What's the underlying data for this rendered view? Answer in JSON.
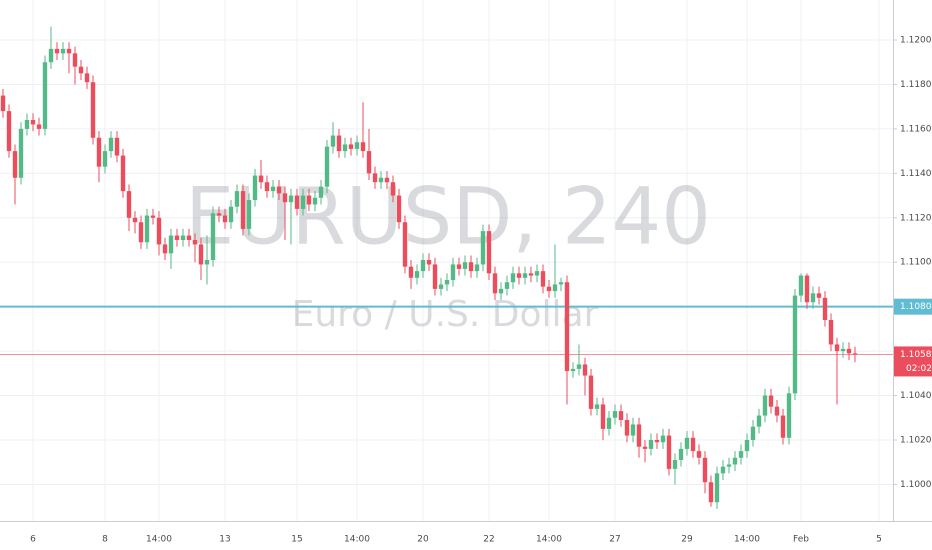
{
  "chart_data": {
    "type": "candlestick",
    "watermark": "EURUSD, 240",
    "subtitle": "Euro / U.S. Dollar",
    "categories": [
      null,
      null,
      null,
      null,
      null,
      "6",
      null,
      null,
      null,
      null,
      null,
      null,
      null,
      null,
      null,
      null,
      null,
      "8",
      null,
      null,
      null,
      null,
      null,
      null,
      null,
      null,
      "14:00",
      null,
      null,
      null,
      null,
      null,
      null,
      null,
      null,
      null,
      null,
      "13",
      null,
      null,
      null,
      null,
      null,
      null,
      null,
      null,
      null,
      null,
      null,
      "15",
      null,
      null,
      null,
      null,
      null,
      null,
      null,
      null,
      null,
      "14:00",
      null,
      null,
      null,
      null,
      null,
      null,
      null,
      null,
      null,
      null,
      "20",
      null,
      null,
      null,
      null,
      null,
      null,
      null,
      null,
      null,
      null,
      "22",
      null,
      null,
      null,
      null,
      null,
      null,
      null,
      null,
      null,
      "14:00",
      null,
      null,
      null,
      null,
      null,
      null,
      null,
      null,
      null,
      null,
      "27",
      null,
      null,
      null,
      null,
      null,
      null,
      null,
      null,
      null,
      null,
      null,
      "29",
      null,
      null,
      null,
      null,
      null,
      null,
      null,
      null,
      null,
      "14:00",
      null,
      null,
      null,
      null,
      null,
      null,
      null,
      null,
      "Feb",
      null,
      null,
      null,
      null,
      null,
      null,
      null,
      null,
      null,
      null,
      null,
      null,
      "5"
    ],
    "open": [
      1.1175,
      1.1168,
      1.115,
      1.1138,
      1.116,
      1.1164,
      1.1162,
      1.116,
      1.119,
      1.1196,
      1.1194,
      1.1196,
      1.1194,
      1.1188,
      1.1185,
      1.1181,
      1.1156,
      1.1143,
      1.115,
      1.1156,
      1.1148,
      1.1132,
      1.112,
      1.1118,
      1.1109,
      1.1121,
      1.112,
      1.1108,
      1.1104,
      1.1112,
      1.111,
      1.1112,
      1.111,
      1.1108,
      1.1099,
      1.1101,
      1.1122,
      1.1121,
      1.1118,
      1.1125,
      1.1132,
      1.1115,
      1.1128,
      1.1139,
      1.1136,
      1.1132,
      1.1134,
      1.1131,
      1.1127,
      1.113,
      1.1124,
      1.113,
      1.1126,
      1.1129,
      1.1134,
      1.1152,
      1.1157,
      1.115,
      1.1153,
      1.1151,
      1.1154,
      1.115,
      1.114,
      1.1136,
      1.1138,
      1.1136,
      1.113,
      1.1118,
      1.1098,
      1.1093,
      1.1096,
      1.1101,
      1.1099,
      1.1088,
      1.109,
      1.1092,
      1.1099,
      1.1097,
      1.11,
      1.1096,
      1.1099,
      1.1114,
      1.1095,
      1.1086,
      1.1088,
      1.1091,
      1.1095,
      1.1093,
      1.1095,
      1.1094,
      1.1096,
      1.1089,
      1.1087,
      1.109,
      1.1091,
      1.1051,
      1.1052,
      1.1054,
      1.1049,
      1.1034,
      1.1036,
      1.1025,
      1.103,
      1.1033,
      1.1029,
      1.1022,
      1.1027,
      1.1017,
      1.1016,
      1.102,
      1.1019,
      1.1022,
      1.1007,
      1.1011,
      1.1016,
      1.1021,
      1.1015,
      1.1012,
      1.1001,
      1.0992,
      1.1005,
      1.1008,
      1.1009,
      1.1012,
      1.1015,
      1.102,
      1.1026,
      1.1031,
      1.104,
      1.1035,
      1.1031,
      1.1021,
      1.1041,
      1.1085,
      1.1094,
      1.1082,
      1.1086,
      1.1084,
      1.1074,
      1.1063,
      1.106,
      1.1061,
      1.1059,
      null,
      null,
      null,
      null
    ],
    "high": [
      1.1178,
      1.1171,
      1.1153,
      1.1163,
      1.1167,
      1.1167,
      1.1165,
      1.1193,
      1.1206,
      1.1199,
      1.1199,
      1.1199,
      1.1197,
      1.1191,
      1.1188,
      1.1184,
      1.1159,
      1.1153,
      1.1159,
      1.1159,
      1.1151,
      1.1135,
      1.1123,
      1.1121,
      1.1124,
      1.1124,
      1.1123,
      1.1111,
      1.1115,
      1.1115,
      1.1115,
      1.1115,
      1.1113,
      1.1111,
      1.1112,
      1.1125,
      1.1125,
      1.1124,
      1.1128,
      1.1135,
      1.1135,
      1.1131,
      1.1142,
      1.1146,
      1.1139,
      1.1137,
      1.1137,
      1.1134,
      1.1133,
      1.1133,
      1.1133,
      1.1133,
      1.1132,
      1.1137,
      1.1155,
      1.1163,
      1.116,
      1.1156,
      1.1156,
      1.1157,
      1.1172,
      1.116,
      1.1143,
      1.1141,
      1.1141,
      1.1139,
      1.1133,
      1.1121,
      1.1101,
      1.1099,
      1.1104,
      1.1104,
      1.1102,
      1.1093,
      1.1095,
      1.1102,
      1.1102,
      1.1103,
      1.1103,
      1.1102,
      1.1117,
      1.1117,
      1.1098,
      1.1091,
      1.1094,
      1.1098,
      1.1098,
      1.1098,
      1.1098,
      1.1099,
      1.1099,
      1.1092,
      1.1108,
      1.1093,
      1.1094,
      1.1055,
      1.1063,
      1.1057,
      1.1052,
      1.1039,
      1.1039,
      1.1033,
      1.1036,
      1.1036,
      1.1032,
      1.103,
      1.103,
      1.102,
      1.1023,
      1.1023,
      1.1025,
      1.1025,
      1.1014,
      1.1019,
      1.1024,
      1.1024,
      1.1018,
      1.1015,
      1.1004,
      1.1008,
      1.1011,
      1.1012,
      1.1015,
      1.1018,
      1.1023,
      1.1029,
      1.1034,
      1.1043,
      1.1043,
      1.1038,
      1.1034,
      1.1044,
      1.1088,
      1.1095,
      1.1095,
      1.1089,
      1.1089,
      1.1087,
      1.1077,
      1.1066,
      1.1064,
      1.1064,
      1.1062,
      null,
      null,
      null,
      null
    ],
    "low": [
      1.1165,
      1.1147,
      1.1126,
      1.1135,
      1.1157,
      1.1159,
      1.1157,
      1.1157,
      1.1187,
      1.1191,
      1.1191,
      1.1185,
      1.118,
      1.1182,
      1.1178,
      1.1153,
      1.1136,
      1.114,
      1.1147,
      1.1145,
      1.1129,
      1.1114,
      1.1113,
      1.1106,
      1.1106,
      1.1117,
      1.1103,
      1.1101,
      1.1097,
      1.1107,
      1.1107,
      1.1107,
      1.11,
      1.1092,
      1.109,
      1.1098,
      1.1118,
      1.1115,
      1.1115,
      1.1122,
      1.1112,
      1.1112,
      1.1125,
      1.1133,
      1.1129,
      1.1129,
      1.1128,
      1.111,
      1.1108,
      1.1121,
      1.1121,
      1.1123,
      1.1123,
      1.1126,
      1.1131,
      1.1149,
      1.1147,
      1.1147,
      1.1148,
      1.1148,
      1.1147,
      1.1137,
      1.1133,
      1.1133,
      1.1133,
      1.1127,
      1.1115,
      1.1095,
      1.1088,
      1.109,
      1.1093,
      1.1096,
      1.1085,
      1.1085,
      1.1087,
      1.1089,
      1.1094,
      1.1094,
      1.1093,
      1.1093,
      1.1096,
      1.1092,
      1.1083,
      1.1083,
      1.1085,
      1.1088,
      1.109,
      1.109,
      1.1091,
      1.1091,
      1.1086,
      1.1084,
      1.1084,
      1.1087,
      1.1036,
      1.1048,
      1.1049,
      1.104,
      1.1031,
      1.1031,
      1.102,
      1.1022,
      1.1027,
      1.1026,
      1.1019,
      1.1019,
      1.1012,
      1.101,
      1.1013,
      1.1016,
      1.1016,
      1.1004,
      1.1,
      1.1008,
      1.1013,
      1.1012,
      1.1009,
      1.0996,
      1.099,
      1.0989,
      1.1002,
      1.1005,
      1.1006,
      1.1009,
      1.1012,
      1.1017,
      1.1023,
      1.1028,
      1.1032,
      1.1028,
      1.1018,
      1.1018,
      1.1038,
      1.1082,
      1.1079,
      1.1079,
      1.1081,
      1.1071,
      1.106,
      1.1036,
      1.1057,
      1.1056,
      1.1055,
      null,
      null,
      null,
      null
    ],
    "close": [
      1.1168,
      1.115,
      1.1138,
      1.116,
      1.1164,
      1.1162,
      1.116,
      1.119,
      1.1196,
      1.1194,
      1.1196,
      1.1194,
      1.1188,
      1.1185,
      1.1181,
      1.1156,
      1.1143,
      1.115,
      1.1156,
      1.1148,
      1.1132,
      1.112,
      1.1118,
      1.1109,
      1.1121,
      1.112,
      1.1108,
      1.1104,
      1.1112,
      1.111,
      1.1112,
      1.111,
      1.1108,
      1.1099,
      1.1101,
      1.1122,
      1.1121,
      1.1118,
      1.1125,
      1.1132,
      1.1115,
      1.1128,
      1.1139,
      1.1136,
      1.1132,
      1.1134,
      1.1131,
      1.1127,
      1.113,
      1.1124,
      1.113,
      1.1126,
      1.1129,
      1.1134,
      1.1152,
      1.1157,
      1.115,
      1.1153,
      1.1151,
      1.1154,
      1.115,
      1.114,
      1.1136,
      1.1138,
      1.1136,
      1.113,
      1.1118,
      1.1098,
      1.1093,
      1.1096,
      1.1101,
      1.1099,
      1.1088,
      1.109,
      1.1092,
      1.1099,
      1.1097,
      1.11,
      1.1096,
      1.1099,
      1.1114,
      1.1095,
      1.1086,
      1.1088,
      1.1091,
      1.1095,
      1.1093,
      1.1095,
      1.1094,
      1.1096,
      1.1089,
      1.1087,
      1.109,
      1.1091,
      1.1051,
      1.1052,
      1.1054,
      1.1049,
      1.1034,
      1.1036,
      1.1025,
      1.103,
      1.1033,
      1.1029,
      1.1022,
      1.1027,
      1.1017,
      1.1016,
      1.102,
      1.1019,
      1.1022,
      1.1007,
      1.1011,
      1.1016,
      1.1021,
      1.1015,
      1.1012,
      1.1001,
      1.0992,
      1.1005,
      1.1008,
      1.1009,
      1.1012,
      1.1015,
      1.102,
      1.1026,
      1.1031,
      1.104,
      1.1035,
      1.1031,
      1.1021,
      1.1041,
      1.1085,
      1.1094,
      1.1082,
      1.1086,
      1.1084,
      1.1074,
      1.1063,
      1.106,
      1.1061,
      1.1059,
      1.10585,
      null,
      null,
      null,
      null
    ],
    "up_color": "#53b987",
    "down_color": "#eb4d5c",
    "ylim": [
      1.0984,
      1.1218
    ],
    "yticks": [
      {
        "value": 1.1,
        "label": "1.10000"
      },
      {
        "value": 1.102,
        "label": "1.10200"
      },
      {
        "value": 1.104,
        "label": "1.10400"
      },
      {
        "value": 1.106,
        "label": "1.10600"
      },
      {
        "value": 1.108,
        "label": "1.10800"
      },
      {
        "value": 1.11,
        "label": "1.11000"
      },
      {
        "value": 1.112,
        "label": "1.11200"
      },
      {
        "value": 1.114,
        "label": "1.11400"
      },
      {
        "value": 1.116,
        "label": "1.11600"
      },
      {
        "value": 1.118,
        "label": "1.11800"
      },
      {
        "value": 1.12,
        "label": "1.12000"
      }
    ],
    "grid": true,
    "hline": {
      "value": 1.108,
      "color": "#5fbcd3"
    },
    "last_price": {
      "value": 1.10585,
      "label": "1.10585",
      "color": "#eb4d5c"
    },
    "countdown": "02:02"
  }
}
